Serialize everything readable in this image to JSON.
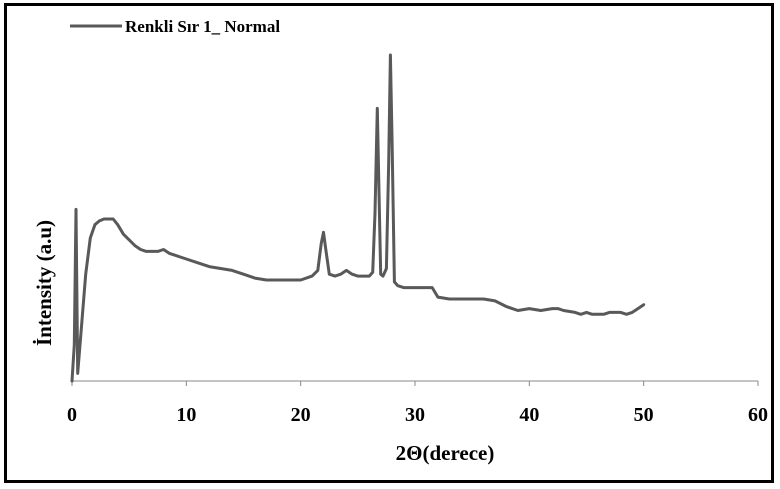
{
  "chart_data": {
    "type": "line",
    "title": "",
    "xlabel": "2Θ(derece)",
    "ylabel": "İntensity (a.u)",
    "xlim": [
      0,
      60
    ],
    "x_ticks": [
      0,
      10,
      20,
      30,
      40,
      50,
      60
    ],
    "x_tick_labels": [
      "0",
      "10",
      "20",
      "30",
      "40",
      "50",
      "60"
    ],
    "y_ticks_shown": false,
    "grid": false,
    "legend_position": "top-left",
    "series": [
      {
        "name": "Renkli Sır 1_ Normal",
        "color": "#595959",
        "x": [
          0,
          0.2,
          0.35,
          0.5,
          0.8,
          1.2,
          1.6,
          2.0,
          2.4,
          2.8,
          3.2,
          3.6,
          4.0,
          4.5,
          5.0,
          5.5,
          6.0,
          6.5,
          7.0,
          7.5,
          8.0,
          8.5,
          9.0,
          10.0,
          11.0,
          12.0,
          13.0,
          14.0,
          15.0,
          16.0,
          17.0,
          18.0,
          19.0,
          20.0,
          21.0,
          21.5,
          21.8,
          22.0,
          22.2,
          22.5,
          23.0,
          23.5,
          24.0,
          24.5,
          25.0,
          25.5,
          26.0,
          26.3,
          26.5,
          26.7,
          26.85,
          27.0,
          27.2,
          27.5,
          27.7,
          27.85,
          28.0,
          28.2,
          28.5,
          29.0,
          30.0,
          31.0,
          31.5,
          32.0,
          33.0,
          34.0,
          35.0,
          36.0,
          37.0,
          38.0,
          38.5,
          39.0,
          40.0,
          41.0,
          42.0,
          42.5,
          43.0,
          44.0,
          44.5,
          45.0,
          45.5,
          46.0,
          46.5,
          47.0,
          48.0,
          48.5,
          49.0,
          49.5,
          50.0
        ],
        "values": [
          0,
          19,
          90,
          4,
          26,
          56,
          75,
          82,
          84,
          85,
          85,
          85,
          82,
          77,
          74,
          71,
          69,
          68,
          68,
          68,
          69,
          67,
          66,
          64,
          62,
          60,
          59,
          58,
          56,
          54,
          53,
          53,
          53,
          53,
          55,
          58,
          72,
          78,
          69,
          56,
          55,
          56,
          58,
          56,
          55,
          55,
          55,
          57,
          88,
          143,
          99,
          56,
          55,
          59,
          115,
          171,
          125,
          52,
          50,
          49,
          49,
          49,
          49,
          44,
          43,
          43,
          43,
          43,
          42,
          39,
          38,
          37,
          38,
          37,
          38,
          38,
          37,
          36,
          35,
          36,
          35,
          35,
          35,
          36,
          36,
          35,
          36,
          38,
          40
        ]
      }
    ]
  }
}
